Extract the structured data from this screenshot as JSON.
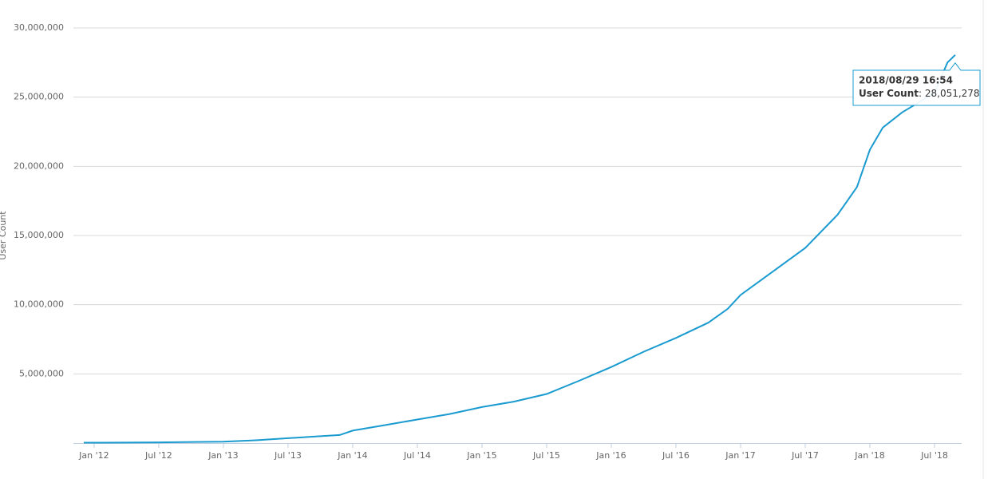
{
  "chart_data": {
    "type": "line",
    "y_label": "User Count",
    "x": [
      2011.92,
      2012.0,
      2012.5,
      2013.0,
      2013.25,
      2013.5,
      2013.9,
      2014.0,
      2014.25,
      2014.5,
      2014.75,
      2015.0,
      2015.25,
      2015.5,
      2015.75,
      2016.0,
      2016.25,
      2016.5,
      2016.75,
      2016.9,
      2017.0,
      2017.25,
      2017.5,
      2017.75,
      2017.9,
      2018.0,
      2018.1,
      2018.25,
      2018.5,
      2018.6,
      2018.66
    ],
    "series": [
      {
        "name": "User Count",
        "color": "#1a9bd0",
        "values": [
          30000,
          30000,
          50000,
          100000,
          200000,
          350000,
          580000,
          900000,
          1300000,
          1700000,
          2100000,
          2600000,
          3000000,
          3550000,
          4500000,
          5500000,
          6600000,
          7600000,
          8700000,
          9700000,
          10700000,
          12400000,
          14100000,
          16500000,
          18500000,
          21200000,
          22800000,
          23900000,
          25300000,
          27500000,
          28051278
        ]
      }
    ],
    "xlim": [
      2011.84,
      2018.71
    ],
    "xticks": [
      {
        "value": 2012.0,
        "label": "Jan '12"
      },
      {
        "value": 2012.5,
        "label": "Jul '12"
      },
      {
        "value": 2013.0,
        "label": "Jan '13"
      },
      {
        "value": 2013.5,
        "label": "Jul '13"
      },
      {
        "value": 2014.0,
        "label": "Jan '14"
      },
      {
        "value": 2014.5,
        "label": "Jul '14"
      },
      {
        "value": 2015.0,
        "label": "Jan '15"
      },
      {
        "value": 2015.5,
        "label": "Jul '15"
      },
      {
        "value": 2016.0,
        "label": "Jan '16"
      },
      {
        "value": 2016.5,
        "label": "Jul '16"
      },
      {
        "value": 2017.0,
        "label": "Jan '17"
      },
      {
        "value": 2017.5,
        "label": "Jul '17"
      },
      {
        "value": 2018.0,
        "label": "Jan '18"
      },
      {
        "value": 2018.5,
        "label": "Jul '18"
      }
    ],
    "ylim": [
      0,
      30000000
    ],
    "yticks": [
      {
        "value": 5000000,
        "label": "5,000,000"
      },
      {
        "value": 10000000,
        "label": "10,000,000"
      },
      {
        "value": 15000000,
        "label": "15,000,000"
      },
      {
        "value": 20000000,
        "label": "20,000,000"
      },
      {
        "value": 25000000,
        "label": "25,000,000"
      },
      {
        "value": 30000000,
        "label": "30,000,000"
      }
    ],
    "grid": true,
    "tooltip": {
      "x_label": "2018/08/29 16:54",
      "value_text": ": 28,051,278"
    }
  }
}
